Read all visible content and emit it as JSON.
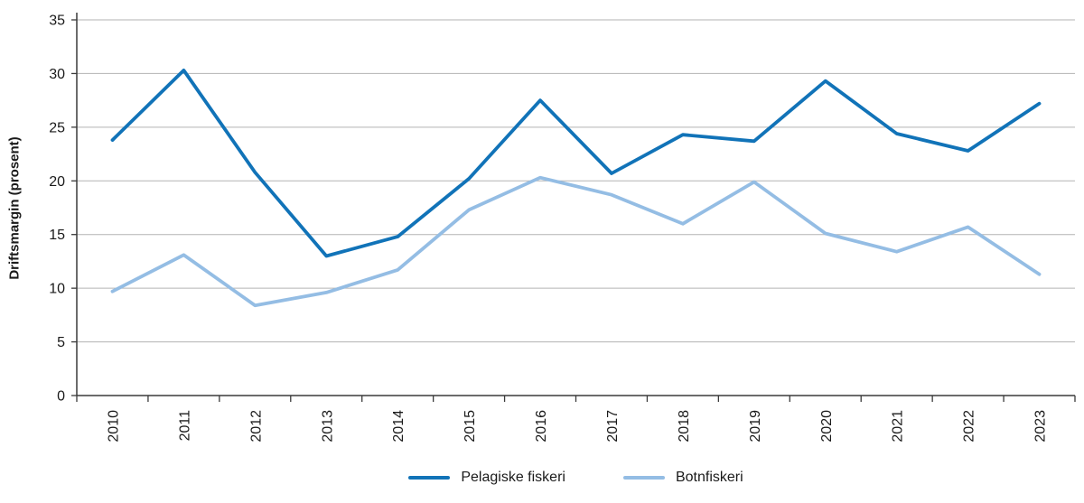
{
  "chart_data": {
    "type": "line",
    "title": "",
    "xlabel": "",
    "ylabel": "Driftsmargin (prosent)",
    "ylim": [
      0,
      35
    ],
    "ytick_step": 5,
    "grid": true,
    "legend_position": "bottom",
    "categories": [
      "2010",
      "2011",
      "2012",
      "2013",
      "2014",
      "2015",
      "2016",
      "2017",
      "2018",
      "2019",
      "2020",
      "2021",
      "2022",
      "2023"
    ],
    "series": [
      {
        "name": "Pelagiske fiskeri",
        "color": "#1173b8",
        "values": [
          23.8,
          30.3,
          20.8,
          13.0,
          14.8,
          20.2,
          27.5,
          20.7,
          24.3,
          23.7,
          29.3,
          24.4,
          22.8,
          27.2
        ]
      },
      {
        "name": "Botnfiskeri",
        "color": "#94bde4",
        "values": [
          9.7,
          13.1,
          8.4,
          9.6,
          11.7,
          17.3,
          20.3,
          18.7,
          16.0,
          19.9,
          15.1,
          13.4,
          15.7,
          11.3
        ]
      }
    ],
    "colors": {
      "grid": "#b3b3b3",
      "axis": "#3a3a3a",
      "text": "#1a1a1a"
    }
  }
}
